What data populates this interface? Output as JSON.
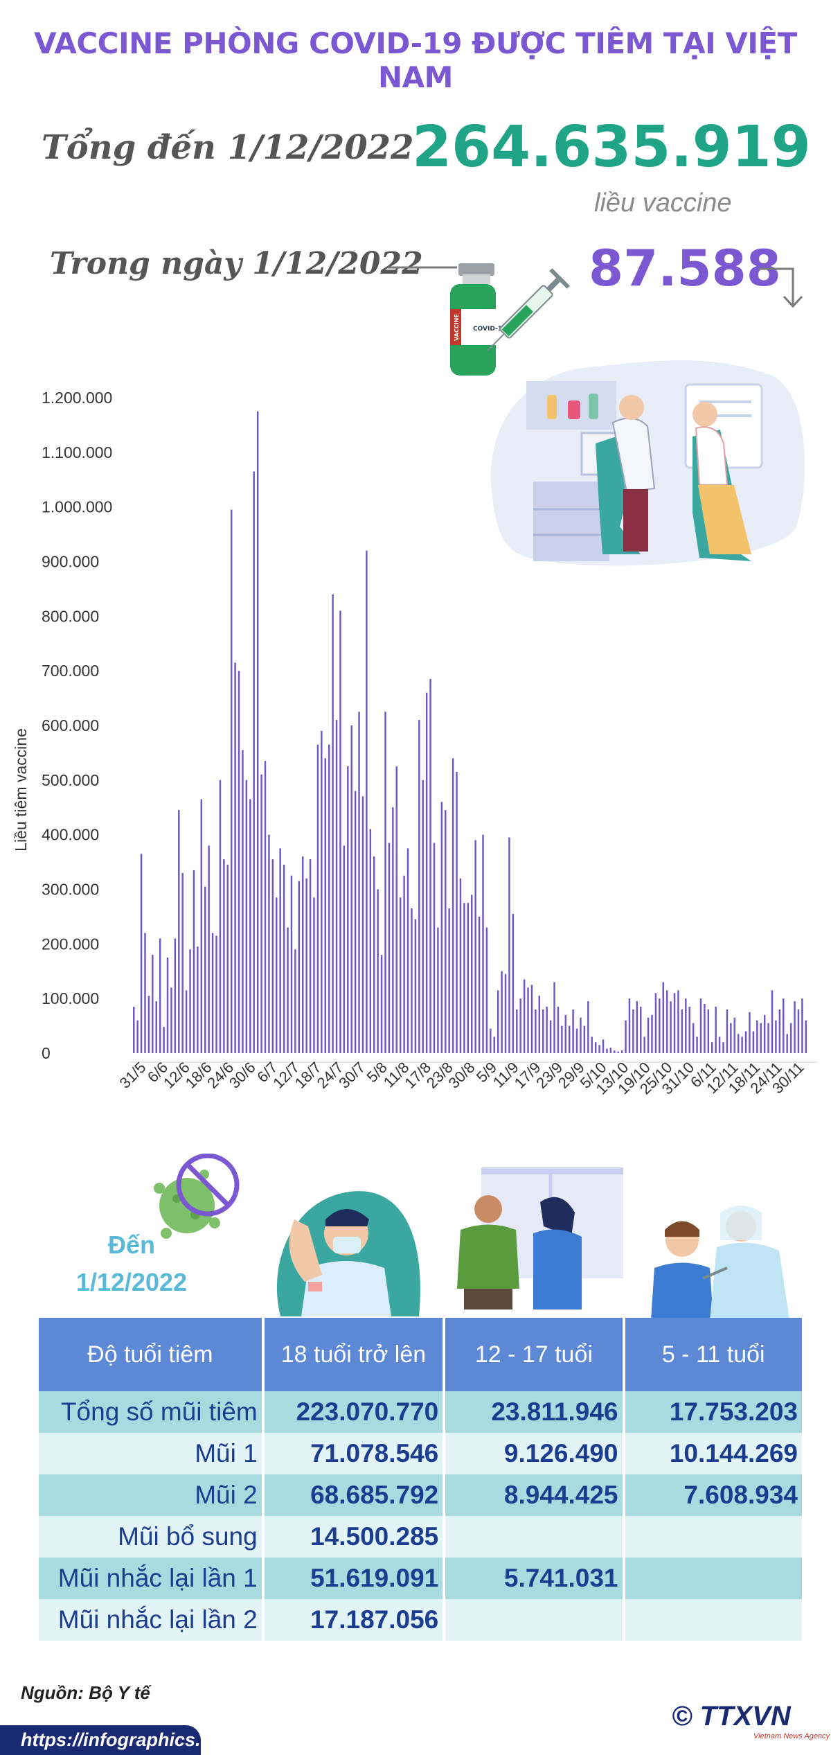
{
  "header": {
    "title": "VACCINE PHÒNG COVID-19 ĐƯỢC TIÊM TẠI VIỆT NAM",
    "total_label": "Tổng đến 1/12/2022",
    "total_value": "264.635.919",
    "total_unit": "liều vaccine",
    "day_label": "Trong ngày 1/12/2022",
    "day_value": "87.588",
    "vial_text_1": "VACCINE",
    "vial_text_2": "COVID-19"
  },
  "chart_data": {
    "type": "bar",
    "ylabel": "Liều tiêm vaccine",
    "ylim": [
      0,
      1200000
    ],
    "yticks": [
      {
        "value": 1200000,
        "label": "1.200.000"
      },
      {
        "value": 1100000,
        "label": "1.100.000"
      },
      {
        "value": 1000000,
        "label": "1.000.000"
      },
      {
        "value": 900000,
        "label": "900.000"
      },
      {
        "value": 800000,
        "label": "800.000"
      },
      {
        "value": 700000,
        "label": "700.000"
      },
      {
        "value": 600000,
        "label": "600.000"
      },
      {
        "value": 500000,
        "label": "500.000"
      },
      {
        "value": 400000,
        "label": "400.000"
      },
      {
        "value": 300000,
        "label": "300.000"
      },
      {
        "value": 200000,
        "label": "200.000"
      },
      {
        "value": 100000,
        "label": "100.000"
      },
      {
        "value": 0,
        "label": "0"
      }
    ],
    "xtick_labels": [
      "31/5",
      "6/6",
      "12/6",
      "18/6",
      "24/6",
      "30/6",
      "6/7",
      "12/7",
      "18/7",
      "24/7",
      "30/7",
      "5/8",
      "11/8",
      "17/8",
      "23/8",
      "30/8",
      "5/9",
      "11/9",
      "17/9",
      "23/9",
      "29/9",
      "5/10",
      "13/10",
      "19/10",
      "25/10",
      "31/10",
      "6/11",
      "12/11",
      "18/11",
      "24/11",
      "30/11"
    ],
    "bar_color": "#6f56c6",
    "values": [
      85000,
      60000,
      365000,
      220000,
      105000,
      180000,
      95000,
      210000,
      48000,
      175000,
      120000,
      210000,
      445000,
      330000,
      115000,
      190000,
      335000,
      195000,
      465000,
      305000,
      380000,
      220000,
      215000,
      500000,
      355000,
      345000,
      995000,
      715000,
      700000,
      555000,
      500000,
      465000,
      1065000,
      1175000,
      510000,
      535000,
      400000,
      355000,
      285000,
      375000,
      345000,
      230000,
      325000,
      190000,
      315000,
      360000,
      320000,
      355000,
      285000,
      565000,
      590000,
      540000,
      565000,
      840000,
      610000,
      810000,
      380000,
      525000,
      600000,
      480000,
      625000,
      470000,
      920000,
      410000,
      360000,
      300000,
      180000,
      625000,
      385000,
      450000,
      525000,
      285000,
      325000,
      375000,
      265000,
      245000,
      610000,
      500000,
      660000,
      685000,
      385000,
      230000,
      460000,
      445000,
      265000,
      540000,
      515000,
      320000,
      275000,
      275000,
      290000,
      390000,
      250000,
      400000,
      230000,
      45000,
      30000,
      115000,
      150000,
      145000,
      395000,
      255000,
      80000,
      100000,
      135000,
      120000,
      125000,
      80000,
      105000,
      80000,
      85000,
      60000,
      130000,
      85000,
      50000,
      70000,
      50000,
      80000,
      45000,
      65000,
      50000,
      95000,
      30000,
      20000,
      15000,
      25000,
      8000,
      10000,
      5000,
      3000,
      5000,
      60000,
      100000,
      80000,
      95000,
      85000,
      30000,
      65000,
      70000,
      110000,
      100000,
      130000,
      115000,
      95000,
      110000,
      115000,
      80000,
      100000,
      85000,
      55000,
      30000,
      100000,
      90000,
      80000,
      20000,
      85000,
      30000,
      20000,
      80000,
      55000,
      65000,
      35000,
      30000,
      40000,
      75000,
      40000,
      60000,
      55000,
      70000,
      55000,
      115000,
      60000,
      80000,
      100000,
      35000,
      55000,
      95000,
      80000,
      100000,
      60000
    ]
  },
  "table": {
    "since_line1": "Đến",
    "since_line2": "1/12/2022",
    "header": [
      "Độ tuổi tiêm",
      "18 tuổi trở lên",
      "12 - 17 tuổi",
      "5 - 11 tuổi"
    ],
    "rows": [
      [
        "Tổng số mũi tiêm",
        "223.070.770",
        "23.811.946",
        "17.753.203"
      ],
      [
        "Mũi 1",
        "71.078.546",
        "9.126.490",
        "10.144.269"
      ],
      [
        "Mũi 2",
        "68.685.792",
        "8.944.425",
        "7.608.934"
      ],
      [
        "Mũi bổ sung",
        "14.500.285",
        "",
        ""
      ],
      [
        "Mũi nhắc lại lần 1",
        "51.619.091",
        "5.741.031",
        ""
      ],
      [
        "Mũi nhắc lại lần 2",
        "17.187.056",
        "",
        ""
      ]
    ]
  },
  "footer": {
    "source": "Nguồn: Bộ Y tế",
    "url": "https://infographics.vn",
    "copyright": "©",
    "logo": "TTXVN",
    "logo_sub": "Vietnam News Agency"
  },
  "colors": {
    "title": "#7b57d1",
    "total_value": "#1fa487",
    "bars": "#6f56c6",
    "table_header": "#5d88d6",
    "table_row_dark": "#a8dbe0",
    "table_row_light": "#e2f4f6"
  }
}
